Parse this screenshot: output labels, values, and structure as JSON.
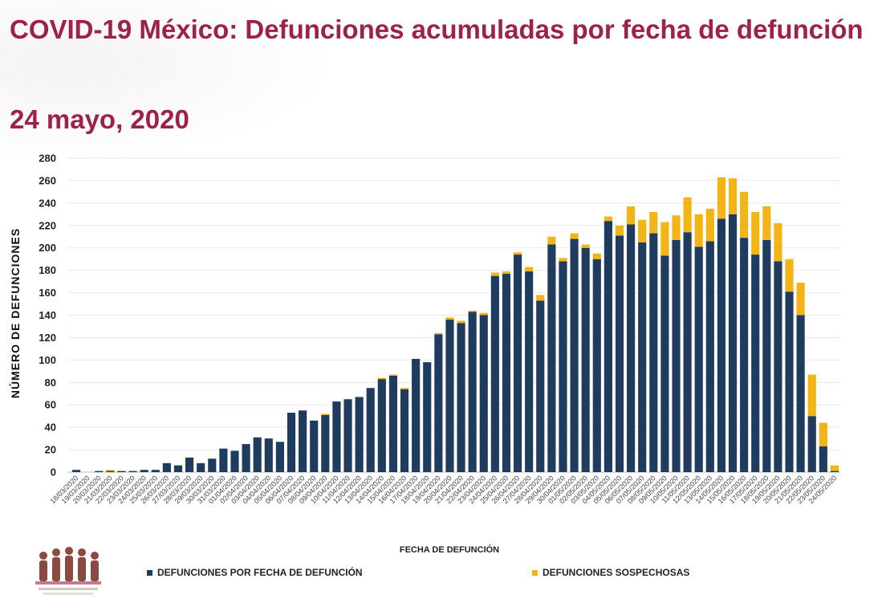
{
  "header": {
    "title": "COVID-19 México: Defunciones acumuladas por fecha de defunción",
    "date": "24 mayo, 2020"
  },
  "colors": {
    "confirmed": "#1f3b5e",
    "suspected": "#f2b416",
    "title": "#9d2148"
  },
  "chart_data": {
    "type": "bar",
    "stacked": true,
    "ylabel": "NÚMERO DE DEFUNCIONES",
    "xlabel": "FECHA DE DEFUNCIÓN",
    "ylim": [
      0,
      280
    ],
    "yticks": [
      0,
      20,
      40,
      60,
      80,
      100,
      120,
      140,
      160,
      180,
      200,
      220,
      240,
      260,
      280
    ],
    "grid": true,
    "legend_position": "bottom",
    "categories": [
      "18/03/2020",
      "19/03/2020",
      "20/03/2020",
      "21/03/2020",
      "22/03/2020",
      "23/03/2020",
      "24/03/2020",
      "25/03/2020",
      "26/03/2020",
      "27/03/2020",
      "28/03/2020",
      "29/03/2020",
      "30/03/2020",
      "31/03/2020",
      "01/04/2020",
      "02/04/2020",
      "03/04/2020",
      "04/04/2020",
      "05/04/2020",
      "06/04/2020",
      "07/04/2020",
      "08/04/2020",
      "09/04/2020",
      "10/04/2020",
      "11/04/2020",
      "12/04/2020",
      "13/04/2020",
      "14/04/2020",
      "15/04/2020",
      "16/04/2020",
      "17/04/2020",
      "18/04/2020",
      "19/04/2020",
      "20/04/2020",
      "21/04/2020",
      "22/04/2020",
      "23/04/2020",
      "24/04/2020",
      "25/04/2020",
      "26/04/2020",
      "27/04/2020",
      "28/04/2020",
      "29/04/2020",
      "30/04/2020",
      "01/05/2020",
      "02/05/2020",
      "03/05/2020",
      "04/05/2020",
      "05/05/2020",
      "06/05/2020",
      "07/05/2020",
      "08/05/2020",
      "09/05/2020",
      "10/05/2020",
      "11/05/2020",
      "12/05/2020",
      "13/05/2020",
      "14/05/2020",
      "15/05/2020",
      "16/05/2020",
      "17/05/2020",
      "18/05/2020",
      "19/05/2020",
      "20/05/2020",
      "21/05/2020",
      "22/05/2020",
      "23/05/2020",
      "24/05/2020"
    ],
    "series": [
      {
        "name": "DEFUNCIONES POR FECHA DE DEFUNCIÓN",
        "values": [
          2,
          0,
          1,
          1,
          1,
          1,
          2,
          2,
          8,
          6,
          13,
          8,
          12,
          21,
          19,
          25,
          31,
          30,
          27,
          53,
          55,
          46,
          51,
          63,
          65,
          67,
          75,
          83,
          86,
          74,
          101,
          98,
          123,
          136,
          133,
          143,
          140,
          175,
          177,
          194,
          179,
          153,
          203,
          188,
          208,
          200,
          190,
          224,
          211,
          221,
          205,
          213,
          193,
          207,
          214,
          201,
          206,
          226,
          230,
          209,
          194,
          207,
          188,
          161,
          140,
          50,
          23,
          1
        ]
      },
      {
        "name": "DEFUNCIONES SOSPECHOSAS",
        "values": [
          0,
          0,
          0,
          1,
          0,
          0,
          0,
          0,
          0,
          0,
          0,
          0,
          0,
          0,
          0,
          0,
          0,
          0,
          0,
          0,
          0,
          0,
          1,
          0,
          0,
          0,
          0,
          1,
          1,
          1,
          0,
          0,
          1,
          2,
          2,
          1,
          2,
          3,
          2,
          2,
          4,
          5,
          7,
          3,
          5,
          3,
          5,
          4,
          9,
          16,
          20,
          19,
          30,
          22,
          31,
          29,
          29,
          37,
          32,
          41,
          38,
          30,
          34,
          29,
          29,
          37,
          21,
          5
        ]
      }
    ]
  }
}
